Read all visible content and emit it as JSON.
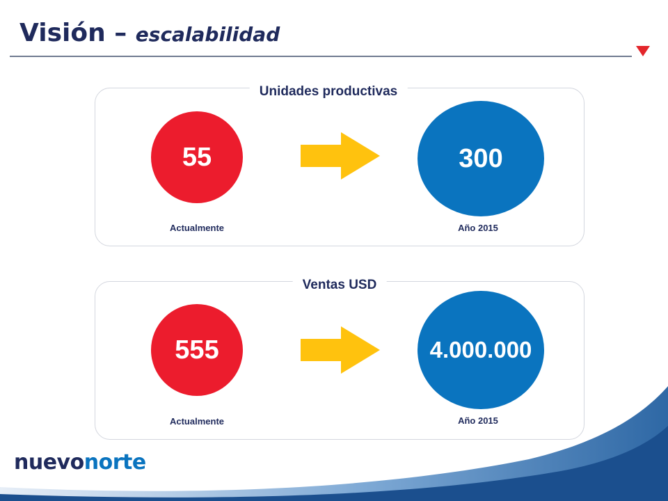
{
  "slide": {
    "title_main": "Visión –",
    "title_sub": "escalabilidad",
    "brand_primary": "nuevo",
    "brand_accent": "norte"
  },
  "colors": {
    "navy": "#1f2a5c",
    "red": "#ec1c2d",
    "blue": "#0a74bf",
    "arrow_yellow": "#ffc20e",
    "title_triangle": "#e3262b"
  },
  "icons": {
    "title": "red-triangle-icon",
    "transition": "yellow-right-arrow-icon"
  },
  "panels": [
    {
      "label": "Unidades productivas",
      "current": {
        "value": "55",
        "caption": "Actualmente"
      },
      "target": {
        "value": "300",
        "caption": "Año 2015"
      }
    },
    {
      "label": "Ventas USD",
      "current": {
        "value": "555",
        "caption": "Actualmente"
      },
      "target": {
        "value": "4.000.000",
        "caption": "Año 2015"
      }
    }
  ]
}
